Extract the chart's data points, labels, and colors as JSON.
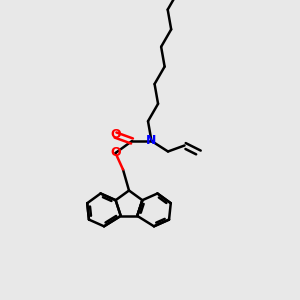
{
  "background_color": "#e8e8e8",
  "bond_color": "#000000",
  "nitrogen_color": "#0000ff",
  "oxygen_color": "#ff0000",
  "bond_width": 1.8,
  "figsize": [
    3.0,
    3.0
  ],
  "dpi": 100,
  "xlim": [
    0.0,
    1.0
  ],
  "ylim": [
    0.0,
    1.0
  ]
}
